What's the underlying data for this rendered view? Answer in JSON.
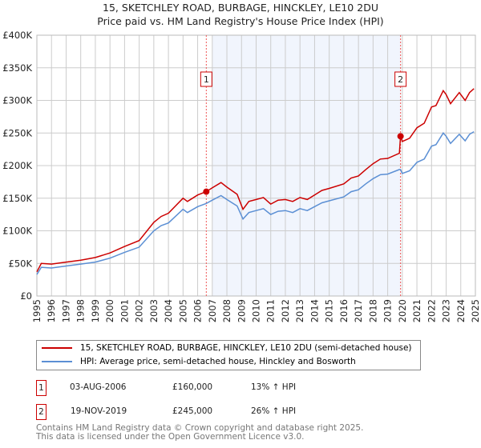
{
  "title": "15, SKETCHLEY ROAD, BURBAGE, HINCKLEY, LE10 2DU",
  "subtitle": "Price paid vs. HM Land Registry's House Price Index (HPI)",
  "chart_data": {
    "type": "line",
    "ylim": [
      0,
      400000
    ],
    "xlim": [
      1995,
      2025
    ],
    "yticks": [
      {
        "v": 0,
        "label": "£0"
      },
      {
        "v": 50000,
        "label": "£50K"
      },
      {
        "v": 100000,
        "label": "£100K"
      },
      {
        "v": 150000,
        "label": "£150K"
      },
      {
        "v": 200000,
        "label": "£200K"
      },
      {
        "v": 250000,
        "label": "£250K"
      },
      {
        "v": 300000,
        "label": "£300K"
      },
      {
        "v": 350000,
        "label": "£350K"
      },
      {
        "v": 400000,
        "label": "£400K"
      }
    ],
    "xticks": [
      "1995",
      "1996",
      "1997",
      "1998",
      "1999",
      "2000",
      "2001",
      "2002",
      "2003",
      "2004",
      "2005",
      "2006",
      "2007",
      "2008",
      "2009",
      "2010",
      "2011",
      "2012",
      "2013",
      "2014",
      "2015",
      "2016",
      "2017",
      "2018",
      "2019",
      "2020",
      "2021",
      "2022",
      "2023",
      "2024",
      "2025"
    ],
    "grid": true,
    "shaded_range": [
      2007,
      2019.88
    ],
    "x": [
      1995,
      1995.3,
      1996,
      1997,
      1998,
      1999,
      2000,
      2001,
      2002,
      2003,
      2003.5,
      2004,
      2005,
      2005.3,
      2006,
      2006.59,
      2007,
      2007.6,
      2008,
      2008.7,
      2009.1,
      2009.5,
      2010,
      2010.5,
      2011,
      2011.5,
      2012,
      2012.5,
      2013,
      2013.5,
      2014,
      2014.5,
      2015,
      2016,
      2016.5,
      2017,
      2017.5,
      2018,
      2018.5,
      2019,
      2019.8,
      2019.88,
      2020,
      2020.5,
      2021,
      2021.5,
      2022,
      2022.3,
      2022.8,
      2023,
      2023.3,
      2023.9,
      2024.3,
      2024.6,
      2024.9
    ],
    "series": [
      {
        "name": "15, SKETCHLEY ROAD, BURBAGE, HINCKLEY, LE10 2DU (semi-detached house)",
        "color": "#cc0000",
        "values": [
          37,
          50,
          49,
          52,
          55,
          59,
          66,
          76,
          85,
          113,
          122,
          127,
          150,
          145,
          155,
          160,
          166,
          174,
          167,
          156,
          133,
          145,
          148,
          151,
          141,
          147,
          148,
          145,
          151,
          148,
          155,
          162,
          165,
          172,
          181,
          184,
          194,
          203,
          210,
          211,
          219,
          245,
          237,
          242,
          258,
          265,
          290,
          292,
          315,
          309,
          295,
          312,
          300,
          312,
          318
        ]
      },
      {
        "name": "HPI: Average price, semi-detached house, Hinckley and Bosworth",
        "color": "#5b8fd4",
        "values": [
          33,
          44,
          43,
          46,
          49,
          52,
          58,
          67,
          75,
          100,
          108,
          112,
          133,
          128,
          137,
          142,
          147,
          154,
          148,
          138,
          118,
          128,
          131,
          134,
          125,
          130,
          131,
          128,
          134,
          131,
          137,
          143,
          146,
          152,
          160,
          163,
          172,
          180,
          186,
          187,
          194,
          194,
          188,
          192,
          205,
          210,
          230,
          232,
          250,
          245,
          234,
          248,
          238,
          248,
          252
        ]
      }
    ],
    "value_unit": "thousand GBP",
    "sales": [
      {
        "label": "1",
        "x": 2006.59,
        "price": 160000,
        "date": "03-AUG-2006",
        "price_text": "£160,000",
        "hpi_text": "13% ↑ HPI"
      },
      {
        "label": "2",
        "x": 2019.88,
        "price": 245000,
        "date": "19-NOV-2019",
        "price_text": "£245,000",
        "hpi_text": "26% ↑ HPI"
      }
    ]
  },
  "footer": [
    "Contains HM Land Registry data © Crown copyright and database right 2025.",
    "This data is licensed under the Open Government Licence v3.0."
  ]
}
